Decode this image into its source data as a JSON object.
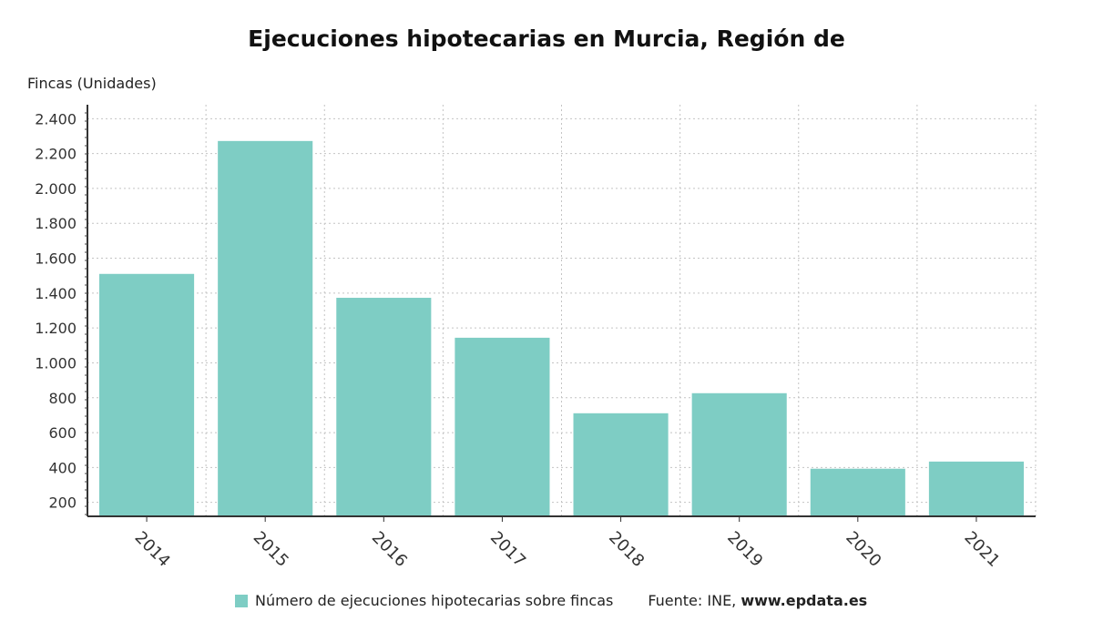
{
  "chart_data": {
    "type": "bar",
    "title": "Ejecuciones hipotecarias en Murcia, Región de",
    "ylabel": "Fincas (Unidades)",
    "xlabel": "",
    "categories": [
      "2014",
      "2015",
      "2016",
      "2017",
      "2018",
      "2019",
      "2020",
      "2021"
    ],
    "series": [
      {
        "name": "Número de ejecuciones hipotecarias sobre fincas",
        "values": [
          1510,
          2272,
          1373,
          1144,
          711,
          826,
          393,
          434
        ]
      }
    ],
    "ylim": [
      120,
      2480
    ],
    "yticks": [
      200,
      400,
      600,
      800,
      1000,
      1200,
      1400,
      1600,
      1800,
      2000,
      2200,
      2400
    ],
    "ytick_labels": [
      "200",
      "400",
      "600",
      "800",
      "1.000",
      "1.200",
      "1.400",
      "1.600",
      "1.800",
      "2.000",
      "2.200",
      "2.400"
    ],
    "grid": true,
    "legend_position": "bottom",
    "bar_color": "#7ecdc4"
  },
  "legend": {
    "series_label": "Número de ejecuciones hipotecarias sobre fincas",
    "source_prefix": "Fuente: INE, ",
    "source_site": "www.epdata.es"
  }
}
